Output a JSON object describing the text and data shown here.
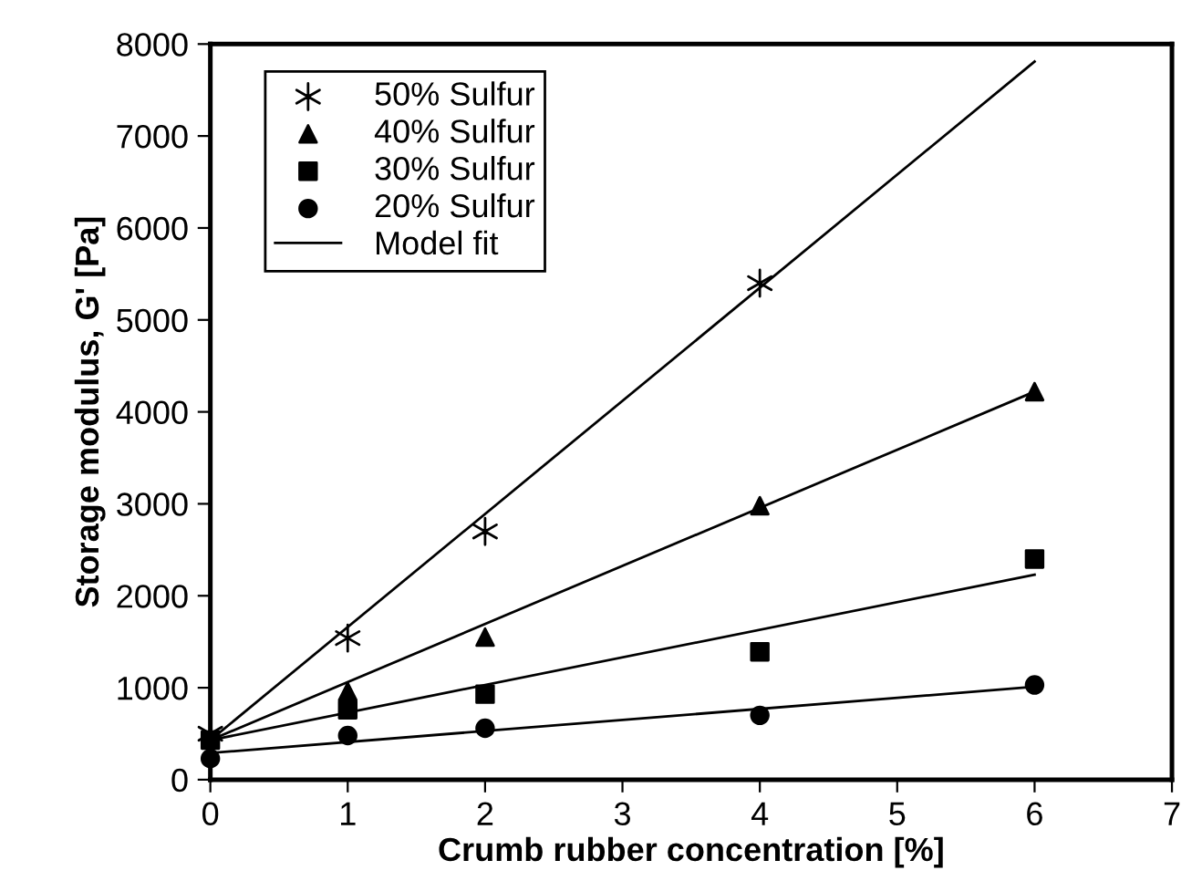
{
  "chart_data": {
    "type": "scatter",
    "xlabel": "Crumb rubber concentration [%]",
    "ylabel": "Storage modulus, G' [Pa]",
    "xlim": [
      0,
      7
    ],
    "xticks": [
      0,
      1,
      2,
      3,
      4,
      5,
      6,
      7
    ],
    "ylim": [
      0,
      8000
    ],
    "yticks": [
      0,
      1000,
      2000,
      3000,
      4000,
      5000,
      6000,
      7000,
      8000
    ],
    "grid": false,
    "legend": "top left",
    "series": [
      {
        "name": "50% Sulfur",
        "marker": "cross",
        "color": "#000000",
        "x": [
          0,
          1,
          2,
          4
        ],
        "values": [
          500,
          1540,
          2700,
          5400
        ]
      },
      {
        "name": "40% Sulfur",
        "marker": "triangle",
        "color": "#000000",
        "x": [
          1,
          2,
          4,
          6
        ],
        "values": [
          960,
          1550,
          2980,
          4220
        ]
      },
      {
        "name": "30% Sulfur",
        "marker": "square",
        "color": "#000000",
        "x": [
          0,
          1,
          2,
          4,
          6
        ],
        "values": [
          430,
          760,
          930,
          1390,
          2400
        ]
      },
      {
        "name": "20% Sulfur",
        "marker": "circle",
        "color": "#000000",
        "x": [
          0,
          1,
          2,
          4,
          6
        ],
        "values": [
          230,
          480,
          560,
          700,
          1030
        ]
      },
      {
        "name": "Model fit",
        "type": "line",
        "marker": "none",
        "line_style": "solid",
        "color": "#000000",
        "x": [
          0,
          6
        ],
        "values": [
          430,
          7810
        ]
      },
      {
        "type": "line",
        "marker": "none",
        "line_style": "solid",
        "color": "#000000",
        "x": [
          0,
          6
        ],
        "values": [
          430,
          4220
        ]
      },
      {
        "type": "line",
        "marker": "none",
        "line_style": "solid",
        "color": "#000000",
        "x": [
          0,
          6
        ],
        "values": [
          430,
          2230
        ]
      },
      {
        "type": "line",
        "marker": "none",
        "line_style": "solid",
        "color": "#000000",
        "x": [
          0,
          6
        ],
        "values": [
          290,
          1010
        ]
      }
    ]
  }
}
